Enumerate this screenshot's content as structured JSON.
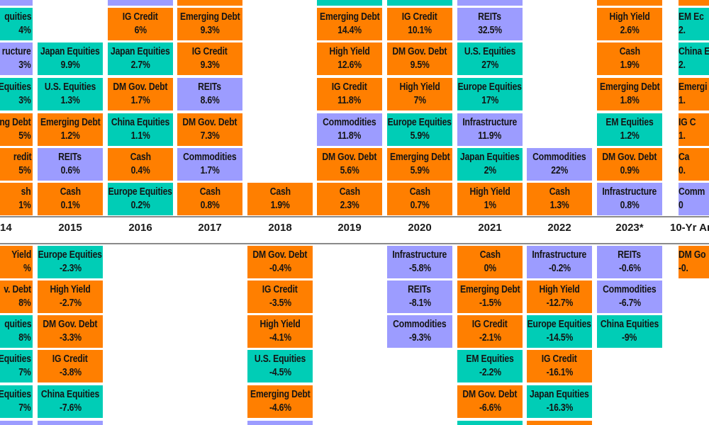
{
  "chart_data": {
    "type": "table",
    "colors": {
      "equities": "#00CDB6",
      "fixed_income": "#FF7F00",
      "real_assets": "#9C9CFF",
      "text": "#141414"
    },
    "columns": [
      {
        "year": "14",
        "clip": "left",
        "positive": [
          {
            "color": "real_assets"
          },
          {
            "asset": "quities",
            "value": "4%",
            "color": "equities"
          },
          {
            "asset": "ructure",
            "value": "3%",
            "color": "real_assets"
          },
          {
            "asset": "Equities",
            "value": "3%",
            "color": "equities"
          },
          {
            "asset": "ng Debt",
            "value": "5%",
            "color": "fixed_income"
          },
          {
            "asset": "redit",
            "value": "5%",
            "color": "fixed_income"
          },
          {
            "asset": "sh",
            "value": "1%",
            "color": "fixed_income"
          }
        ],
        "negative": [
          {
            "asset": "Yield",
            "value": "%",
            "color": "fixed_income"
          },
          {
            "asset": "v. Debt",
            "value": "8%",
            "color": "fixed_income"
          },
          {
            "asset": "quities",
            "value": "8%",
            "color": "equities"
          },
          {
            "asset": "Equities",
            "value": "7%",
            "color": "equities"
          },
          {
            "asset": "Equities",
            "value": "7%",
            "color": "equities"
          },
          {
            "color": "real_assets"
          }
        ]
      },
      {
        "year": "2015",
        "positive": [
          null,
          null,
          {
            "asset": "Japan Equities",
            "value": "9.9%",
            "color": "equities"
          },
          {
            "asset": "U.S. Equities",
            "value": "1.3%",
            "color": "equities"
          },
          {
            "asset": "Emerging Debt",
            "value": "1.2%",
            "color": "fixed_income"
          },
          {
            "asset": "REITs",
            "value": "0.6%",
            "color": "real_assets"
          },
          {
            "asset": "Cash",
            "value": "0.1%",
            "color": "fixed_income"
          }
        ],
        "negative": [
          {
            "asset": "Europe Equities",
            "value": "-2.3%",
            "color": "equities"
          },
          {
            "asset": "High Yield",
            "value": "-2.7%",
            "color": "fixed_income"
          },
          {
            "asset": "DM Gov. Debt",
            "value": "-3.3%",
            "color": "fixed_income"
          },
          {
            "asset": "IG Credit",
            "value": "-3.8%",
            "color": "fixed_income"
          },
          {
            "asset": "China Equities",
            "value": "-7.6%",
            "color": "equities"
          },
          {
            "color": "real_assets"
          }
        ]
      },
      {
        "year": "2016",
        "positive": [
          {
            "color": "real_assets"
          },
          {
            "asset": "IG Credit",
            "value": "6%",
            "color": "fixed_income"
          },
          {
            "asset": "Japan Equities",
            "value": "2.7%",
            "color": "equities"
          },
          {
            "asset": "DM Gov. Debt",
            "value": "1.7%",
            "color": "fixed_income"
          },
          {
            "asset": "China Equities",
            "value": "1.1%",
            "color": "equities"
          },
          {
            "asset": "Cash",
            "value": "0.4%",
            "color": "fixed_income"
          },
          {
            "asset": "Europe Equities",
            "value": "0.2%",
            "color": "equities"
          }
        ],
        "negative": []
      },
      {
        "year": "2017",
        "positive": [
          {
            "color": "fixed_income"
          },
          {
            "asset": "Emerging Debt",
            "value": "9.3%",
            "color": "fixed_income"
          },
          {
            "asset": "IG Credit",
            "value": "9.3%",
            "color": "fixed_income"
          },
          {
            "asset": "REITs",
            "value": "8.6%",
            "color": "real_assets"
          },
          {
            "asset": "DM Gov. Debt",
            "value": "7.3%",
            "color": "fixed_income"
          },
          {
            "asset": "Commodities",
            "value": "1.7%",
            "color": "real_assets"
          },
          {
            "asset": "Cash",
            "value": "0.8%",
            "color": "fixed_income"
          }
        ],
        "negative": []
      },
      {
        "year": "2018",
        "positive": [
          null,
          null,
          null,
          null,
          null,
          null,
          {
            "asset": "Cash",
            "value": "1.9%",
            "color": "fixed_income"
          }
        ],
        "negative": [
          {
            "asset": "DM Gov. Debt",
            "value": "-0.4%",
            "color": "fixed_income"
          },
          {
            "asset": "IG Credit",
            "value": "-3.5%",
            "color": "fixed_income"
          },
          {
            "asset": "High Yield",
            "value": "-4.1%",
            "color": "fixed_income"
          },
          {
            "asset": "U.S. Equities",
            "value": "-4.5%",
            "color": "equities"
          },
          {
            "asset": "Emerging Debt",
            "value": "-4.6%",
            "color": "fixed_income"
          },
          {
            "color": "real_assets"
          }
        ]
      },
      {
        "year": "2019",
        "positive": [
          {
            "color": "equities"
          },
          {
            "asset": "Emerging Debt",
            "value": "14.4%",
            "color": "fixed_income"
          },
          {
            "asset": "High Yield",
            "value": "12.6%",
            "color": "fixed_income"
          },
          {
            "asset": "IG Credit",
            "value": "11.8%",
            "color": "fixed_income"
          },
          {
            "asset": "Commodities",
            "value": "11.8%",
            "color": "real_assets"
          },
          {
            "asset": "DM Gov. Debt",
            "value": "5.6%",
            "color": "fixed_income"
          },
          {
            "asset": "Cash",
            "value": "2.3%",
            "color": "fixed_income"
          }
        ],
        "negative": []
      },
      {
        "year": "2020",
        "positive": [
          {
            "color": "equities"
          },
          {
            "asset": "IG Credit",
            "value": "10.1%",
            "color": "fixed_income"
          },
          {
            "asset": "DM Gov. Debt",
            "value": "9.5%",
            "color": "fixed_income"
          },
          {
            "asset": "High Yield",
            "value": "7%",
            "color": "fixed_income"
          },
          {
            "asset": "Europe Equities",
            "value": "5.9%",
            "color": "equities"
          },
          {
            "asset": "Emerging Debt",
            "value": "5.9%",
            "color": "fixed_income"
          },
          {
            "asset": "Cash",
            "value": "0.7%",
            "color": "fixed_income"
          }
        ],
        "negative": [
          {
            "asset": "Infrastructure",
            "value": "-5.8%",
            "color": "real_assets"
          },
          {
            "asset": "REITs",
            "value": "-8.1%",
            "color": "real_assets"
          },
          {
            "asset": "Commodities",
            "value": "-9.3%",
            "color": "real_assets"
          }
        ]
      },
      {
        "year": "2021",
        "positive": [
          {
            "color": "real_assets"
          },
          {
            "asset": "REITs",
            "value": "32.5%",
            "color": "real_assets"
          },
          {
            "asset": "U.S. Equities",
            "value": "27%",
            "color": "equities"
          },
          {
            "asset": "Europe Equities",
            "value": "17%",
            "color": "equities"
          },
          {
            "asset": "Infrastructure",
            "value": "11.9%",
            "color": "real_assets"
          },
          {
            "asset": "Japan Equities",
            "value": "2%",
            "color": "equities"
          },
          {
            "asset": "High Yield",
            "value": "1%",
            "color": "fixed_income"
          }
        ],
        "negative": [
          {
            "asset": "Cash",
            "value": "0%",
            "color": "fixed_income"
          },
          {
            "asset": "Emerging Debt",
            "value": "-1.5%",
            "color": "fixed_income"
          },
          {
            "asset": "IG Credit",
            "value": "-2.1%",
            "color": "fixed_income"
          },
          {
            "asset": "EM Equities",
            "value": "-2.2%",
            "color": "equities"
          },
          {
            "asset": "DM Gov. Debt",
            "value": "-6.6%",
            "color": "fixed_income"
          },
          {
            "color": "equities"
          }
        ]
      },
      {
        "year": "2022",
        "positive": [
          null,
          null,
          null,
          null,
          null,
          {
            "asset": "Commodities",
            "value": "22%",
            "color": "real_assets"
          },
          {
            "asset": "Cash",
            "value": "1.3%",
            "color": "fixed_income"
          }
        ],
        "negative": [
          {
            "asset": "Infrastructure",
            "value": "-0.2%",
            "color": "real_assets"
          },
          {
            "asset": "High Yield",
            "value": "-12.7%",
            "color": "fixed_income"
          },
          {
            "asset": "Europe Equities",
            "value": "-14.5%",
            "color": "equities"
          },
          {
            "asset": "IG Credit",
            "value": "-16.1%",
            "color": "fixed_income"
          },
          {
            "asset": "Japan Equities",
            "value": "-16.3%",
            "color": "equities"
          },
          {
            "color": "fixed_income"
          }
        ]
      },
      {
        "year": "2023*",
        "positive": [
          {
            "color": "fixed_income"
          },
          {
            "asset": "High Yield",
            "value": "2.6%",
            "color": "fixed_income"
          },
          {
            "asset": "Cash",
            "value": "1.9%",
            "color": "fixed_income"
          },
          {
            "asset": "Emerging Debt",
            "value": "1.8%",
            "color": "fixed_income"
          },
          {
            "asset": "EM Equities",
            "value": "1.2%",
            "color": "equities"
          },
          {
            "asset": "DM Gov. Debt",
            "value": "0.9%",
            "color": "fixed_income"
          },
          {
            "asset": "Infrastructure",
            "value": "0.8%",
            "color": "real_assets"
          }
        ],
        "negative": [
          {
            "asset": "REITs",
            "value": "-0.6%",
            "color": "real_assets"
          },
          {
            "asset": "Commodities",
            "value": "-6.7%",
            "color": "real_assets"
          },
          {
            "asset": "China Equities",
            "value": "-9%",
            "color": "equities"
          }
        ]
      },
      {
        "year": "10-Yr Ar",
        "clip": "right",
        "positive": [
          {
            "color": "fixed_income"
          },
          {
            "asset": "EM Ec",
            "value": "2.",
            "color": "equities"
          },
          {
            "asset": "China E",
            "value": "2.",
            "color": "equities"
          },
          {
            "asset": "Emergi",
            "value": "1.",
            "color": "fixed_income"
          },
          {
            "asset": "IG C",
            "value": "1.",
            "color": "fixed_income"
          },
          {
            "asset": "Ca",
            "value": "0.",
            "color": "fixed_income"
          },
          {
            "asset": "Comm",
            "value": "0",
            "color": "real_assets"
          }
        ],
        "negative": [
          {
            "asset": "DM Go",
            "value": "-0.",
            "color": "fixed_income"
          }
        ]
      }
    ]
  }
}
